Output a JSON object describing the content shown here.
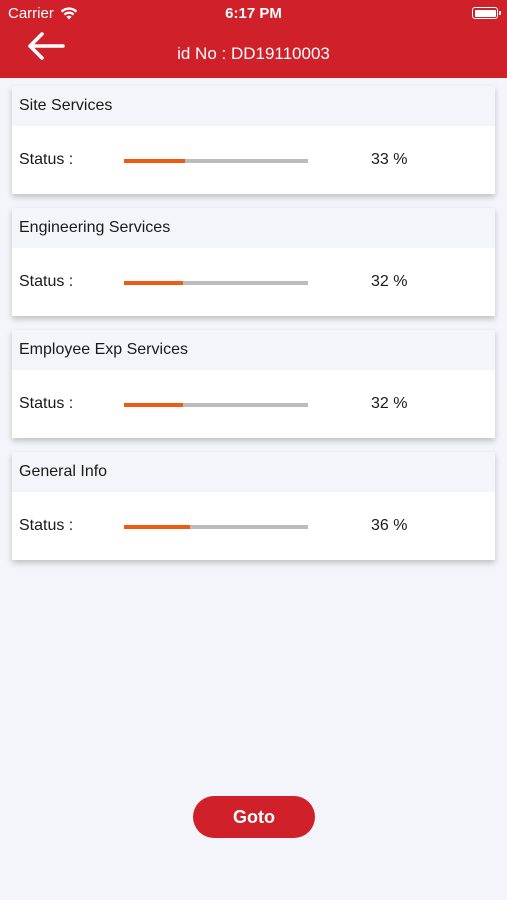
{
  "status_bar": {
    "carrier": "Carrier",
    "time": "6:17 PM"
  },
  "header": {
    "title": "id No : DD19110003",
    "back_icon": "arrow-left-icon"
  },
  "colors": {
    "brand": "#d0202a",
    "progress": "#ef5a12",
    "track": "#bcbcbc"
  },
  "sections": [
    {
      "title": "Site Services",
      "status_label": "Status :",
      "progress": 0.33,
      "percent_text": "33 %"
    },
    {
      "title": "Engineering Services",
      "status_label": "Status :",
      "progress": 0.32,
      "percent_text": "32 %"
    },
    {
      "title": "Employee Exp Services",
      "status_label": "Status :",
      "progress": 0.32,
      "percent_text": "32 %"
    },
    {
      "title": "General Info",
      "status_label": "Status :",
      "progress": 0.36,
      "percent_text": "36 %"
    }
  ],
  "footer": {
    "goto_label": "Goto"
  }
}
